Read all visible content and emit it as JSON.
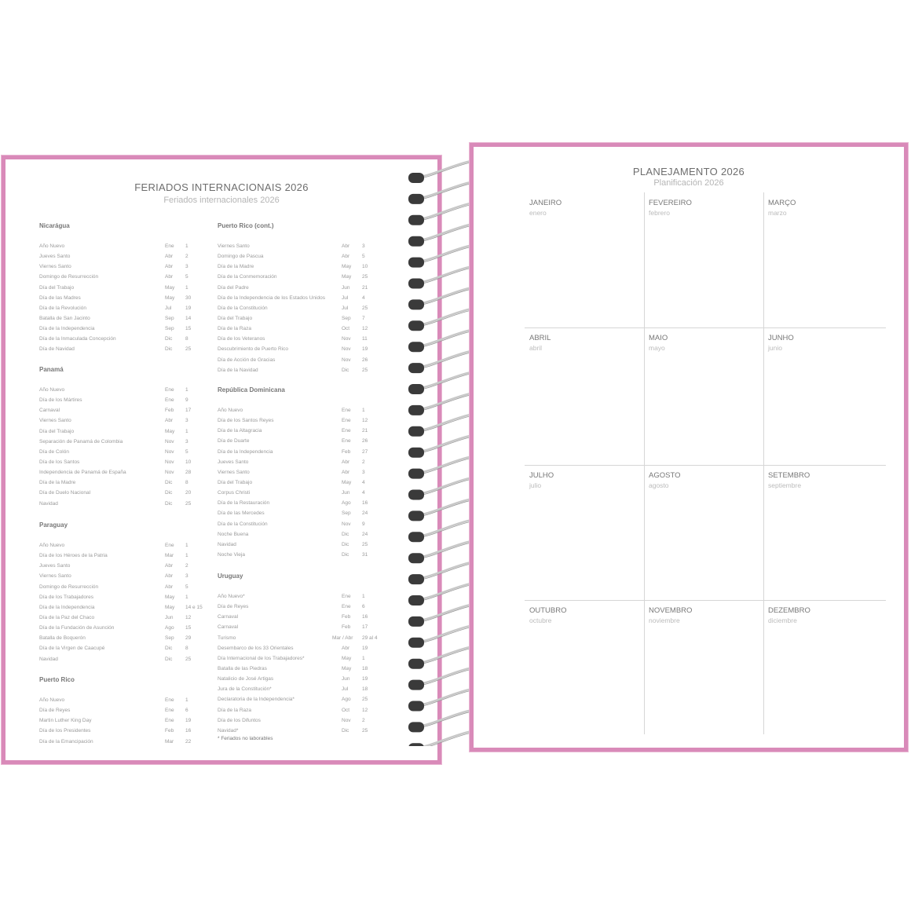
{
  "left_page": {
    "title": "FERIADOS INTERNACIONAIS 2026",
    "subtitle": "Feriados internacionales 2026",
    "sections": [
      {
        "name": "Nicarágua",
        "rows": [
          [
            "Año Nuevo",
            "Ene",
            "1"
          ],
          [
            "Jueves Santo",
            "Abr",
            "2"
          ],
          [
            "Viernes Santo",
            "Abr",
            "3"
          ],
          [
            "Domingo de Resurrección",
            "Abr",
            "5"
          ],
          [
            "Día del Trabajo",
            "May",
            "1"
          ],
          [
            "Día de las Madres",
            "May",
            "30"
          ],
          [
            "Día de la Revolución",
            "Jul",
            "19"
          ],
          [
            "Batalla de San Jacinto",
            "Sep",
            "14"
          ],
          [
            "Día de la Independencia",
            "Sep",
            "15"
          ],
          [
            "Día de la Inmaculada Concepción",
            "Dic",
            "8"
          ],
          [
            "Día de Navidad",
            "Dic",
            "25"
          ]
        ]
      },
      {
        "name": "Panamá",
        "rows": [
          [
            "Año Nuevo",
            "Ene",
            "1"
          ],
          [
            "Día de los Mártires",
            "Ene",
            "9"
          ],
          [
            "Carnaval",
            "Feb",
            "17"
          ],
          [
            "Viernes Santo",
            "Abr",
            "3"
          ],
          [
            "Día del Trabajo",
            "May",
            "1"
          ],
          [
            "Separación de Panamá de Colombia",
            "Nov",
            "3"
          ],
          [
            "Día de Colón",
            "Nov",
            "5"
          ],
          [
            "Día de los Santos",
            "Nov",
            "10"
          ],
          [
            "Independencia de Panamá de España",
            "Nov",
            "28"
          ],
          [
            "Día de la Madre",
            "Dic",
            "8"
          ],
          [
            "Día de Duelo Nacional",
            "Dic",
            "20"
          ],
          [
            "Navidad",
            "Dic",
            "25"
          ]
        ]
      },
      {
        "name": "Paraguay",
        "rows": [
          [
            "Año Nuevo",
            "Ene",
            "1"
          ],
          [
            "Día de los Héroes de la Patria",
            "Mar",
            "1"
          ],
          [
            "Jueves Santo",
            "Abr",
            "2"
          ],
          [
            "Viernes Santo",
            "Abr",
            "3"
          ],
          [
            "Domingo de Resurrección",
            "Abr",
            "5"
          ],
          [
            "Día de los Trabajadores",
            "May",
            "1"
          ],
          [
            "Día de la Independencia",
            "May",
            "14 e 15"
          ],
          [
            "Día de la Paz del Chaco",
            "Jun",
            "12"
          ],
          [
            "Día de la Fundación de Asunción",
            "Ago",
            "15"
          ],
          [
            "Batalla de Boquerón",
            "Sep",
            "29"
          ],
          [
            "Día de la Virgen de Caacupé",
            "Dic",
            "8"
          ],
          [
            "Navidad",
            "Dic",
            "25"
          ]
        ]
      },
      {
        "name": "Puerto Rico",
        "rows": [
          [
            "Año Nuevo",
            "Ene",
            "1"
          ],
          [
            "Día de Reyes",
            "Ene",
            "6"
          ],
          [
            "Martin Luther King Day",
            "Ene",
            "19"
          ],
          [
            "Día de los Presidentes",
            "Feb",
            "16"
          ],
          [
            "Día de la Emancipación",
            "Mar",
            "22"
          ]
        ]
      },
      {
        "name": "Puerto Rico (cont.)",
        "rows": [
          [
            "Viernes Santo",
            "Abr",
            "3"
          ],
          [
            "Domingo de Pascua",
            "Abr",
            "5"
          ],
          [
            "Día de la Madre",
            "May",
            "10"
          ],
          [
            "Día de la Conmemoración",
            "May",
            "25"
          ],
          [
            "Día del Padre",
            "Jun",
            "21"
          ],
          [
            "Día de la Independencia de los Estados Unidos",
            "Jul",
            "4"
          ],
          [
            "Día de la Constitución",
            "Jul",
            "25"
          ],
          [
            "Día del Trabajo",
            "Sep",
            "7"
          ],
          [
            "Día de la Raza",
            "Oct",
            "12"
          ],
          [
            "Día de los Veteranos",
            "Nov",
            "11"
          ],
          [
            "Descubrimiento de Puerto Rico",
            "Nov",
            "19"
          ],
          [
            "Día de Acción de Gracias",
            "Nov",
            "26"
          ],
          [
            "Día de la Navidad",
            "Dic",
            "25"
          ]
        ]
      },
      {
        "name": "República Dominicana",
        "rows": [
          [
            "Año Nuevo",
            "Ene",
            "1"
          ],
          [
            "Día de los Santos Reyes",
            "Ene",
            "12"
          ],
          [
            "Día de la Altagracia",
            "Ene",
            "21"
          ],
          [
            "Día de Duarte",
            "Ene",
            "26"
          ],
          [
            "Día de la Independencia",
            "Feb",
            "27"
          ],
          [
            "Jueves Santo",
            "Abr",
            "2"
          ],
          [
            "Viernes Santo",
            "Abr",
            "3"
          ],
          [
            "Día del Trabajo",
            "May",
            "4"
          ],
          [
            "Corpus Christi",
            "Jun",
            "4"
          ],
          [
            "Día de la Restauración",
            "Ago",
            "16"
          ],
          [
            "Día de las Mercedes",
            "Sep",
            "24"
          ],
          [
            "Día de la Constitución",
            "Nov",
            "9"
          ],
          [
            "Noche Buena",
            "Dic",
            "24"
          ],
          [
            "Navidad",
            "Dic",
            "25"
          ],
          [
            "Noche Vieja",
            "Dic",
            "31"
          ]
        ]
      },
      {
        "name": "Uruguay",
        "rows": [
          [
            "Año Nuevo*",
            "Ene",
            "1"
          ],
          [
            "Día de Reyes",
            "Ene",
            "6"
          ],
          [
            "Carnaval",
            "Feb",
            "16"
          ],
          [
            "Carnaval",
            "Feb",
            "17"
          ],
          [
            "Turismo",
            "Mar / Abr",
            "29 al 4"
          ],
          [
            "Desembarco de los 33 Orientales",
            "Abr",
            "19"
          ],
          [
            "Día Internacional de los Trabajadores*",
            "May",
            "1"
          ],
          [
            "Batalla de las Piedras",
            "May",
            "18"
          ],
          [
            "Natalicio de José Artigas",
            "Jun",
            "19"
          ],
          [
            "Jura de la Constitución*",
            "Jul",
            "18"
          ],
          [
            "Declaratoria de la Independencia*",
            "Ago",
            "25"
          ],
          [
            "Día de la Raza",
            "Oct",
            "12"
          ],
          [
            "Día de los Difuntos",
            "Nov",
            "2"
          ],
          [
            "Navidad*",
            "Dic",
            "25"
          ]
        ],
        "note": "* Feriados no laborables"
      }
    ]
  },
  "right_page": {
    "title": "PLANEJAMENTO 2026",
    "subtitle": "Planificación 2026",
    "months": [
      {
        "pt": "JANEIRO",
        "es": "enero"
      },
      {
        "pt": "FEVEREIRO",
        "es": "febrero"
      },
      {
        "pt": "MARÇO",
        "es": "marzo"
      },
      {
        "pt": "ABRIL",
        "es": "abril"
      },
      {
        "pt": "MAIO",
        "es": "mayo"
      },
      {
        "pt": "JUNHO",
        "es": "junio"
      },
      {
        "pt": "JULHO",
        "es": "julio"
      },
      {
        "pt": "AGOSTO",
        "es": "agosto"
      },
      {
        "pt": "SETEMBRO",
        "es": "septiembre"
      },
      {
        "pt": "OUTUBRO",
        "es": "octubre"
      },
      {
        "pt": "NOVEMBRO",
        "es": "noviembre"
      },
      {
        "pt": "DEZEMBRO",
        "es": "diciembre"
      }
    ]
  },
  "colors": {
    "border": "#d98ab9",
    "ring": "#3a3a3a",
    "wire": "#c8c8c8"
  },
  "spiral": {
    "rings": 28
  }
}
